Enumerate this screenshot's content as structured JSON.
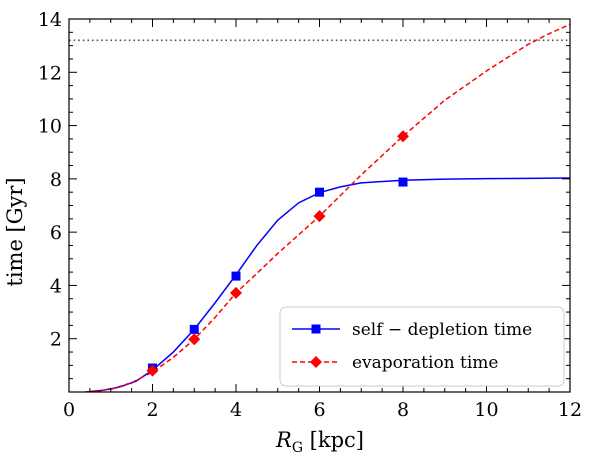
{
  "chart_data": {
    "type": "line",
    "xlabel_main": "R",
    "xlabel_sub": "G",
    "xlabel_unit": " [kpc]",
    "ylabel": "time [Gyr]",
    "xlim": [
      0,
      12
    ],
    "ylim": [
      0,
      14
    ],
    "xticks": [
      0,
      2,
      4,
      6,
      8,
      10,
      12
    ],
    "yticks": [
      2,
      4,
      6,
      8,
      10,
      12,
      14
    ],
    "grid": false,
    "legend_position": "lower-right",
    "reference_line": {
      "y": 13.2,
      "style": "dotted",
      "color": "#555555"
    },
    "series": [
      {
        "name": "self − depletion time",
        "color": "#0000ff",
        "line_style": "solid",
        "marker": "square",
        "points": [
          {
            "x": 2,
            "y": 0.9
          },
          {
            "x": 3,
            "y": 2.35
          },
          {
            "x": 4,
            "y": 4.35
          },
          {
            "x": 6,
            "y": 7.5
          },
          {
            "x": 8,
            "y": 7.88
          }
        ],
        "curve": [
          [
            0.4,
            0
          ],
          [
            0.8,
            0.06
          ],
          [
            1.2,
            0.18
          ],
          [
            1.6,
            0.4
          ],
          [
            2.0,
            0.82
          ],
          [
            2.5,
            1.5
          ],
          [
            3.0,
            2.35
          ],
          [
            3.5,
            3.35
          ],
          [
            4.0,
            4.4
          ],
          [
            4.5,
            5.5
          ],
          [
            5.0,
            6.45
          ],
          [
            5.5,
            7.1
          ],
          [
            6.0,
            7.48
          ],
          [
            6.5,
            7.7
          ],
          [
            7.0,
            7.85
          ],
          [
            8.0,
            7.95
          ],
          [
            9.0,
            7.99
          ],
          [
            10.0,
            8.01
          ],
          [
            11.0,
            8.02
          ],
          [
            12.0,
            8.03
          ]
        ]
      },
      {
        "name": "evaporation time",
        "color": "#ff0000",
        "line_style": "dashed",
        "marker": "diamond",
        "points": [
          {
            "x": 2,
            "y": 0.8
          },
          {
            "x": 3,
            "y": 1.98
          },
          {
            "x": 4,
            "y": 3.72
          },
          {
            "x": 6,
            "y": 6.6
          },
          {
            "x": 8,
            "y": 9.6
          }
        ],
        "curve": [
          [
            0.4,
            0
          ],
          [
            1.0,
            0.1
          ],
          [
            1.5,
            0.35
          ],
          [
            2.0,
            0.75
          ],
          [
            2.5,
            1.3
          ],
          [
            3.0,
            1.98
          ],
          [
            3.5,
            2.8
          ],
          [
            4.0,
            3.72
          ],
          [
            4.5,
            4.45
          ],
          [
            5.0,
            5.2
          ],
          [
            5.5,
            5.9
          ],
          [
            6.0,
            6.6
          ],
          [
            7.0,
            8.15
          ],
          [
            8.0,
            9.6
          ],
          [
            9.0,
            10.95
          ],
          [
            10.0,
            12.05
          ],
          [
            11.0,
            13.05
          ],
          [
            11.5,
            13.45
          ],
          [
            12.0,
            13.8
          ]
        ]
      }
    ]
  }
}
